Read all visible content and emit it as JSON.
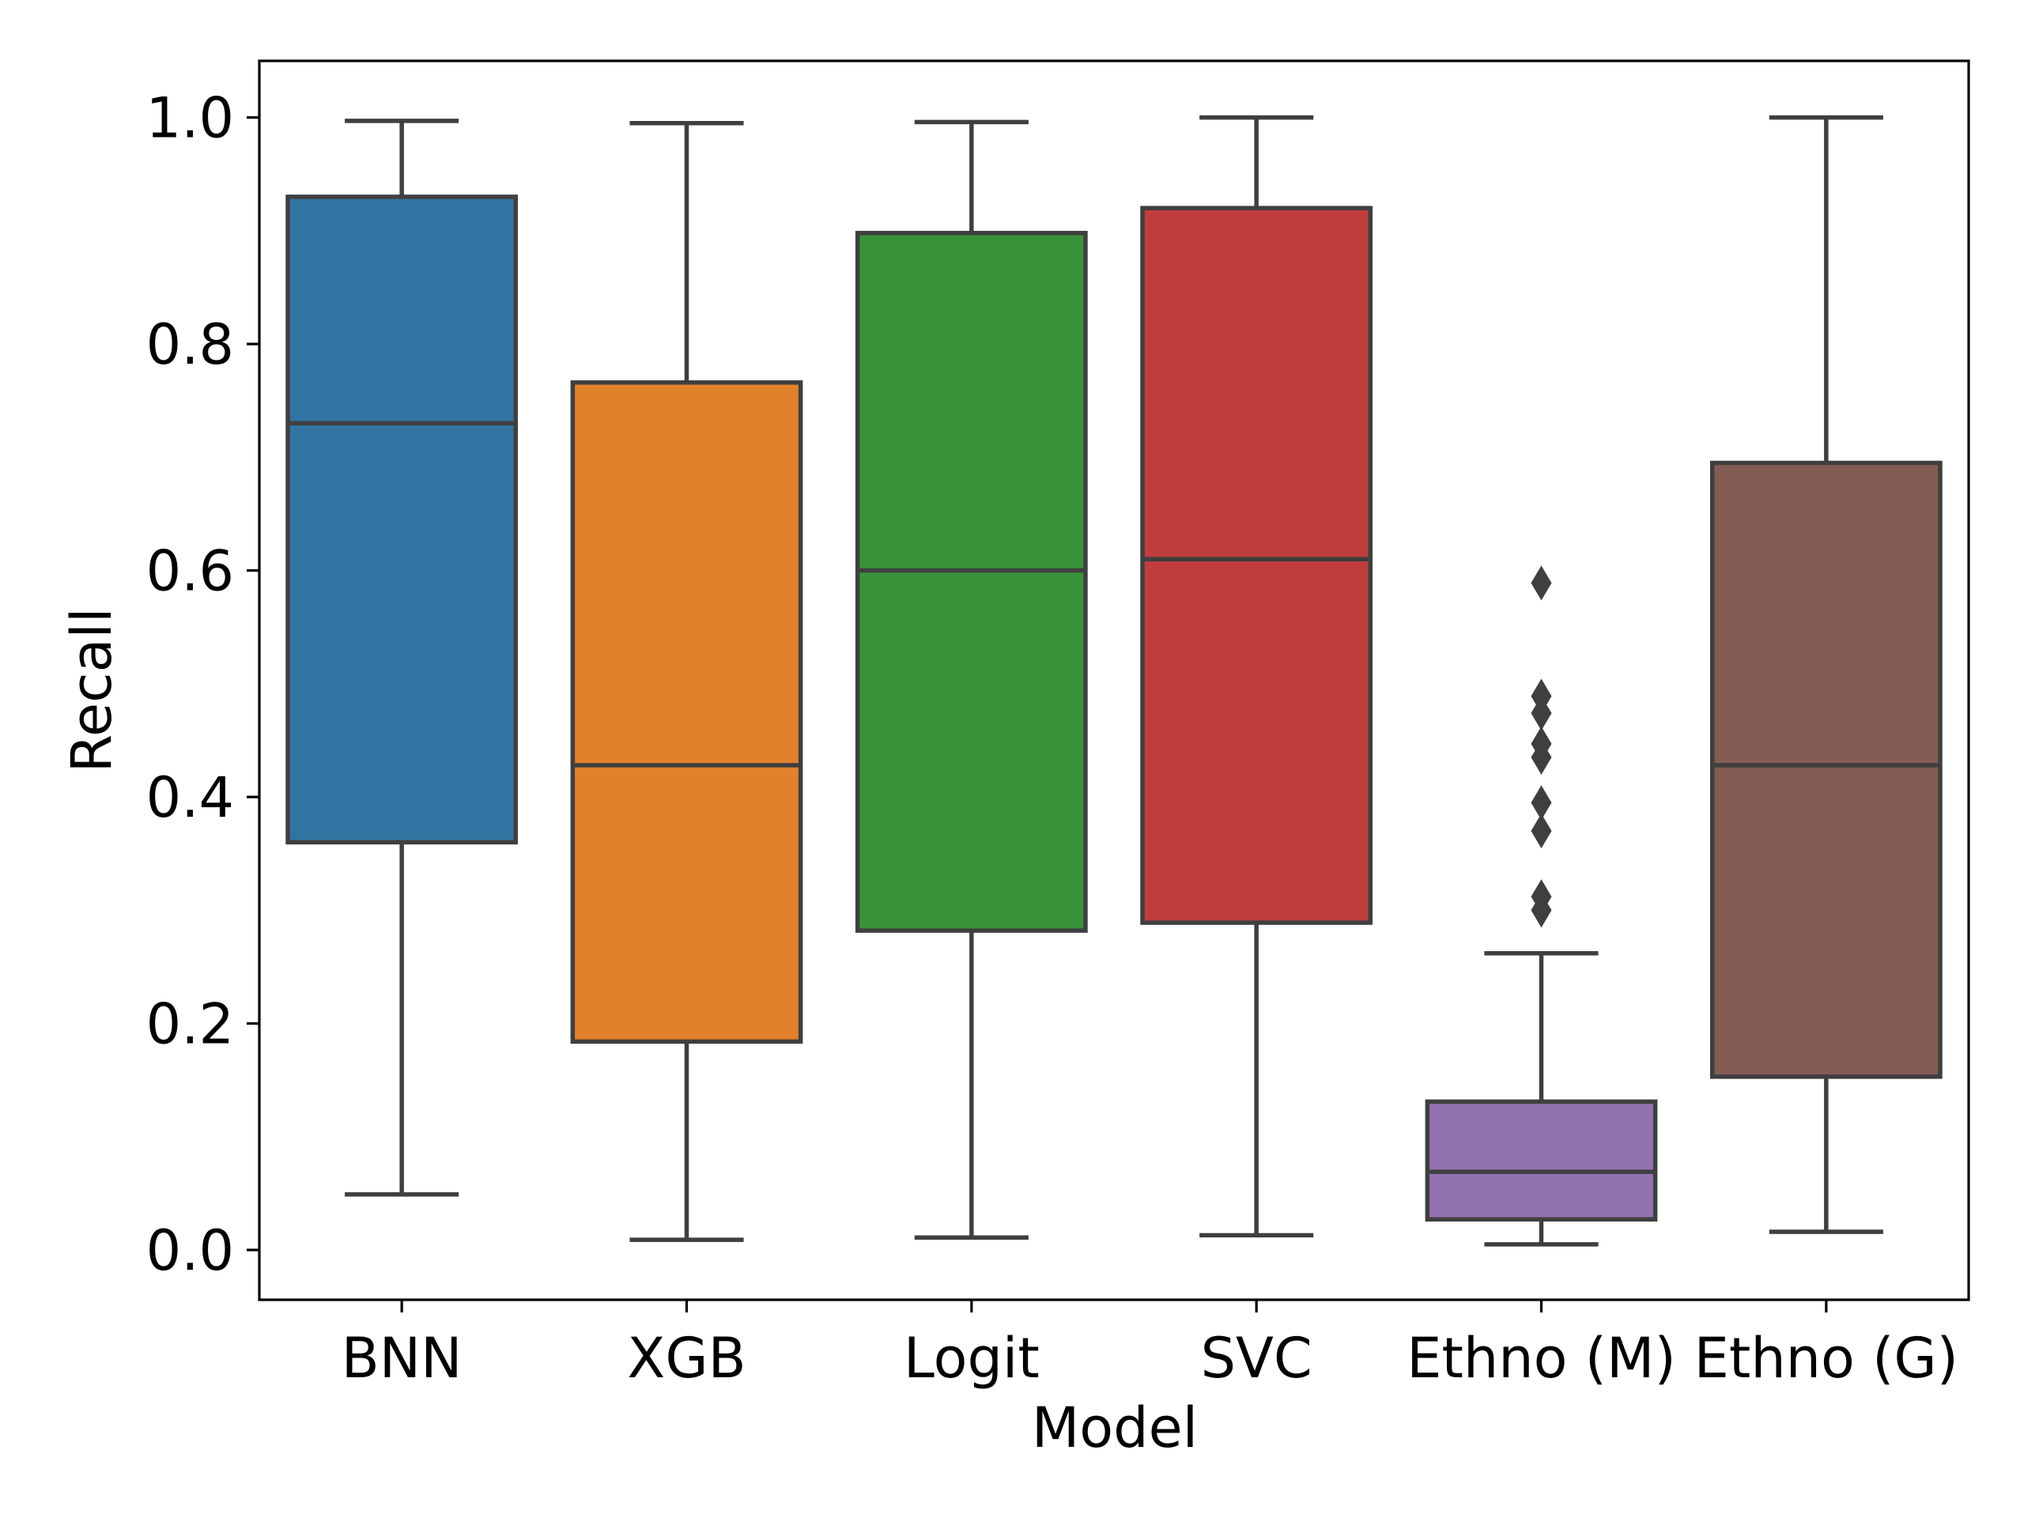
{
  "chart_data": {
    "type": "box",
    "title": "",
    "xlabel": "Model",
    "ylabel": "Recall",
    "ylim": [
      -0.044,
      1.05
    ],
    "yticks": [
      "0.0",
      "0.2",
      "0.4",
      "0.6",
      "0.8",
      "1.0"
    ],
    "grid": false,
    "categories": [
      "BNN",
      "XGB",
      "Logit",
      "SVC",
      "Ethno (M)",
      "Ethno (G)"
    ],
    "boxes": [
      {
        "category": "BNN",
        "whisker_low": 0.049,
        "q1": 0.36,
        "median": 0.73,
        "q3": 0.93,
        "whisker_high": 0.997,
        "outliers": [],
        "color": "#3274a1"
      },
      {
        "category": "XGB",
        "whisker_low": 0.009,
        "q1": 0.184,
        "median": 0.428,
        "q3": 0.766,
        "whisker_high": 0.995,
        "outliers": [],
        "color": "#e1812c"
      },
      {
        "category": "Logit",
        "whisker_low": 0.011,
        "q1": 0.282,
        "median": 0.6,
        "q3": 0.898,
        "whisker_high": 0.996,
        "outliers": [],
        "color": "#3a923a"
      },
      {
        "category": "SVC",
        "whisker_low": 0.013,
        "q1": 0.289,
        "median": 0.61,
        "q3": 0.92,
        "whisker_high": 1.0,
        "outliers": [],
        "color": "#c03d3e"
      },
      {
        "category": "Ethno (M)",
        "whisker_low": 0.005,
        "q1": 0.027,
        "median": 0.069,
        "q3": 0.131,
        "whisker_high": 0.262,
        "outliers": [
          0.3,
          0.312,
          0.37,
          0.395,
          0.435,
          0.447,
          0.474,
          0.489,
          0.589
        ],
        "color": "#9372b2"
      },
      {
        "category": "Ethno (G)",
        "whisker_low": 0.016,
        "q1": 0.153,
        "median": 0.428,
        "q3": 0.695,
        "whisker_high": 1.0,
        "outliers": [],
        "color": "#845b53"
      }
    ],
    "line_color": "#3f3f3f"
  }
}
